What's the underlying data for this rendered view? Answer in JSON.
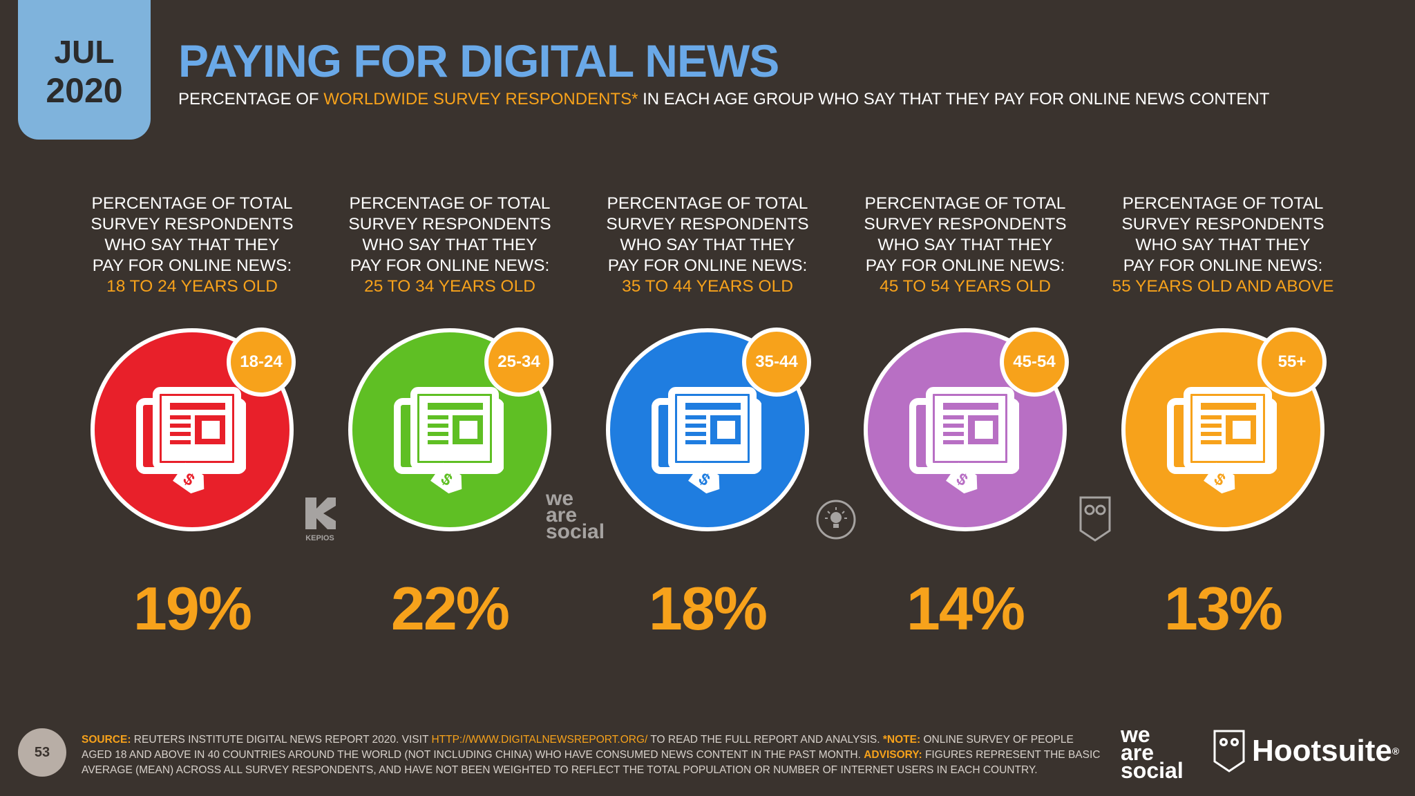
{
  "header": {
    "month": "JUL",
    "year": "2020",
    "title": "PAYING FOR DIGITAL NEWS",
    "subtitle_pre": "PERCENTAGE OF ",
    "subtitle_highlight": "WORLDWIDE SURVEY RESPONDENTS*",
    "subtitle_post": " IN EACH AGE GROUP WHO SAY THAT THEY PAY FOR ONLINE NEWS CONTENT"
  },
  "groups": [
    {
      "desc_lines": [
        "PERCENTAGE OF TOTAL",
        "SURVEY RESPONDENTS",
        "WHO SAY THAT THEY",
        "PAY FOR ONLINE NEWS:"
      ],
      "age_text": "18 TO 24 YEARS OLD",
      "badge": "18-24",
      "value": "19%",
      "color": "#e8202a",
      "icon": "newspaper-price-tag-icon"
    },
    {
      "desc_lines": [
        "PERCENTAGE OF TOTAL",
        "SURVEY RESPONDENTS",
        "WHO SAY THAT THEY",
        "PAY FOR ONLINE NEWS:"
      ],
      "age_text": "25 TO 34 YEARS OLD",
      "badge": "25-34",
      "value": "22%",
      "color": "#5fbf24",
      "icon": "newspaper-price-tag-icon"
    },
    {
      "desc_lines": [
        "PERCENTAGE OF TOTAL",
        "SURVEY RESPONDENTS",
        "WHO SAY THAT THEY",
        "PAY FOR ONLINE NEWS:"
      ],
      "age_text": "35 TO 44 YEARS OLD",
      "badge": "35-44",
      "value": "18%",
      "color": "#1f7de0",
      "icon": "newspaper-price-tag-icon"
    },
    {
      "desc_lines": [
        "PERCENTAGE OF TOTAL",
        "SURVEY RESPONDENTS",
        "WHO SAY THAT THEY",
        "PAY FOR ONLINE NEWS:"
      ],
      "age_text": "45 TO 54 YEARS OLD",
      "badge": "45-54",
      "value": "14%",
      "color": "#b86fc4",
      "icon": "newspaper-price-tag-icon"
    },
    {
      "desc_lines": [
        "PERCENTAGE OF TOTAL",
        "SURVEY RESPONDENTS",
        "WHO SAY THAT THEY",
        "PAY FOR ONLINE NEWS:"
      ],
      "age_text": "55 YEARS OLD AND ABOVE",
      "badge": "55+",
      "value": "13%",
      "color": "#f7a21b",
      "icon": "newspaper-price-tag-icon"
    }
  ],
  "watermarks": {
    "kepios": "KEPIOS",
    "was_line1": "we",
    "was_line2": "are",
    "was_line3": "social"
  },
  "footer": {
    "source_label": "SOURCE:",
    "source_text": " REUTERS INSTITUTE DIGITAL NEWS REPORT 2020. VISIT ",
    "link": "HTTP://WWW.DIGITALNEWSREPORT.ORG/",
    "source_text2": " TO READ THE FULL REPORT AND ANALYSIS. ",
    "note_label": "*NOTE:",
    "note_text": " ONLINE SURVEY OF PEOPLE AGED 18 AND ABOVE IN 40 COUNTRIES AROUND THE WORLD (NOT INCLUDING CHINA) WHO HAVE CONSUMED NEWS CONTENT IN THE PAST MONTH. ",
    "advisory_label": "ADVISORY:",
    "advisory_text": " FIGURES REPRESENT THE BASIC AVERAGE (MEAN) ACROSS ALL SURVEY RESPONDENTS, AND HAVE NOT BEEN WEIGHTED TO REFLECT THE TOTAL POPULATION OR NUMBER OF INTERNET USERS IN EACH COUNTRY.",
    "page_number": "53"
  },
  "brands": {
    "was_1": "we",
    "was_2": "are",
    "was_3": "social",
    "hootsuite": "Hootsuite",
    "registered": "®"
  },
  "colors": {
    "background": "#3a332e",
    "accent": "#f7a21b",
    "title": "#6aa9e8",
    "date_tab": "#7fb3dc"
  }
}
